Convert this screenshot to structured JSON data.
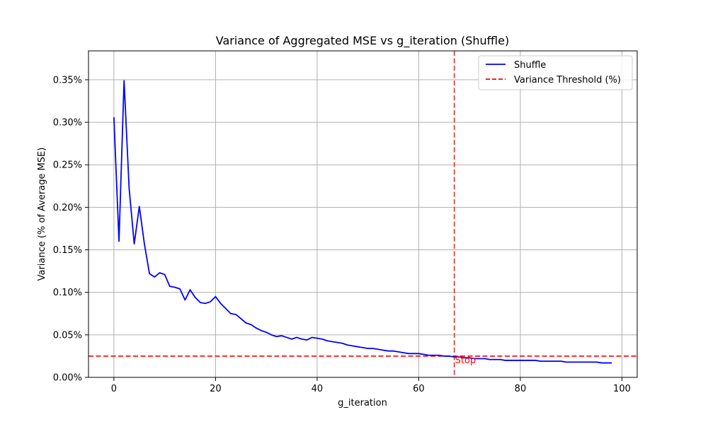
{
  "chart_data": {
    "type": "line",
    "title": "Variance of Aggregated MSE vs g_iteration (Shuffle)",
    "xlabel": "g_iteration",
    "ylabel": "Variance (% of Average MSE)",
    "xlim": [
      -5,
      103
    ],
    "ylim": [
      0,
      0.384
    ],
    "xticks": [
      0,
      20,
      40,
      60,
      80,
      100
    ],
    "xtick_labels": [
      "0",
      "20",
      "40",
      "60",
      "80",
      "100"
    ],
    "yticks": [
      0,
      0.05,
      0.1,
      0.15,
      0.2,
      0.25,
      0.3,
      0.35
    ],
    "ytick_labels": [
      "0.00%",
      "0.05%",
      "0.10%",
      "0.15%",
      "0.20%",
      "0.25%",
      "0.30%",
      "0.35%"
    ],
    "grid": true,
    "legend_position": "top-right",
    "series": [
      {
        "name": "Shuffle",
        "color": "#0000ff",
        "style": "solid",
        "x": [
          0,
          1,
          2,
          3,
          4,
          5,
          6,
          7,
          8,
          9,
          10,
          11,
          12,
          13,
          14,
          15,
          16,
          17,
          18,
          19,
          20,
          21,
          22,
          23,
          24,
          25,
          26,
          27,
          28,
          29,
          30,
          31,
          32,
          33,
          34,
          35,
          36,
          37,
          38,
          39,
          40,
          41,
          42,
          43,
          44,
          45,
          46,
          47,
          48,
          49,
          50,
          51,
          52,
          53,
          54,
          55,
          56,
          57,
          58,
          59,
          60,
          61,
          62,
          63,
          64,
          65,
          66,
          67,
          68,
          69,
          70,
          71,
          72,
          73,
          74,
          75,
          76,
          77,
          78,
          79,
          80,
          81,
          82,
          83,
          84,
          85,
          86,
          87,
          88,
          89,
          90,
          91,
          92,
          93,
          94,
          95,
          96,
          97,
          98
        ],
        "y": [
          0.306,
          0.16,
          0.349,
          0.222,
          0.157,
          0.201,
          0.157,
          0.122,
          0.118,
          0.123,
          0.121,
          0.107,
          0.106,
          0.104,
          0.091,
          0.103,
          0.094,
          0.088,
          0.087,
          0.089,
          0.095,
          0.087,
          0.081,
          0.075,
          0.074,
          0.069,
          0.064,
          0.062,
          0.058,
          0.055,
          0.053,
          0.05,
          0.048,
          0.049,
          0.047,
          0.045,
          0.047,
          0.045,
          0.044,
          0.047,
          0.046,
          0.045,
          0.043,
          0.042,
          0.041,
          0.04,
          0.038,
          0.037,
          0.036,
          0.035,
          0.034,
          0.034,
          0.033,
          0.032,
          0.031,
          0.031,
          0.03,
          0.029,
          0.028,
          0.028,
          0.028,
          0.027,
          0.026,
          0.026,
          0.026,
          0.025,
          0.025,
          0.024,
          0.024,
          0.023,
          0.023,
          0.022,
          0.022,
          0.022,
          0.021,
          0.021,
          0.021,
          0.02,
          0.02,
          0.02,
          0.02,
          0.02,
          0.02,
          0.02,
          0.019,
          0.019,
          0.019,
          0.019,
          0.019,
          0.018,
          0.018,
          0.018,
          0.018,
          0.018,
          0.018,
          0.018,
          0.017,
          0.017,
          0.017
        ]
      }
    ],
    "reference_lines": [
      {
        "name": "Variance Threshold (%)",
        "orientation": "horizontal",
        "value": 0.025,
        "color": "#ff0000",
        "style": "dashed"
      },
      {
        "name": "",
        "orientation": "vertical",
        "value": 67,
        "color": "#e03030",
        "style": "dashed",
        "annotation": "Stop"
      }
    ]
  }
}
